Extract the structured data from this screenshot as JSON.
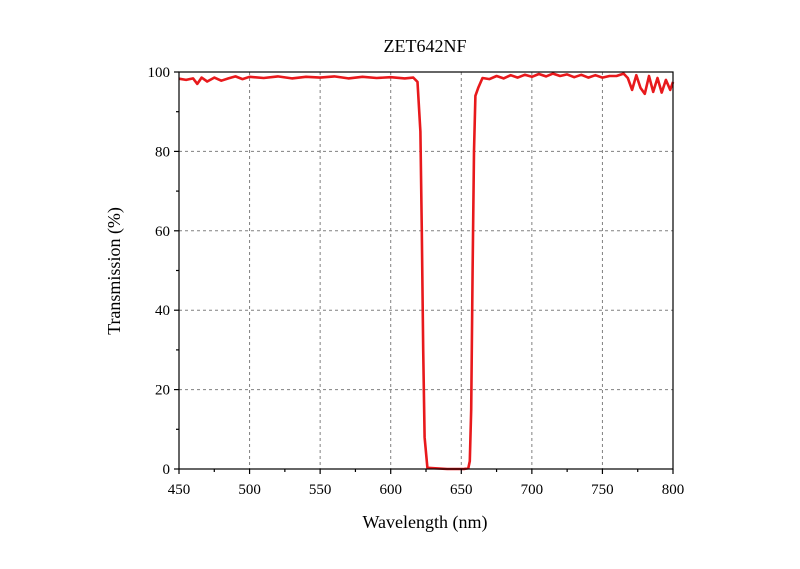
{
  "chart_data": {
    "type": "line",
    "title": "ZET642NF",
    "xlabel": "Wavelength (nm)",
    "ylabel": "Transmission (%)",
    "xlim": [
      450,
      800
    ],
    "ylim": [
      0,
      100
    ],
    "xticks": [
      450,
      500,
      550,
      600,
      650,
      700,
      750,
      800
    ],
    "yticks": [
      0,
      20,
      40,
      60,
      80,
      100
    ],
    "grid": true,
    "series": [
      {
        "color": "#e8191c",
        "points": [
          [
            450,
            98.3
          ],
          [
            455,
            98.0
          ],
          [
            460,
            98.4
          ],
          [
            463,
            97.0
          ],
          [
            466,
            98.6
          ],
          [
            470,
            97.6
          ],
          [
            475,
            98.6
          ],
          [
            480,
            97.8
          ],
          [
            485,
            98.4
          ],
          [
            490,
            98.9
          ],
          [
            495,
            98.2
          ],
          [
            500,
            98.8
          ],
          [
            510,
            98.5
          ],
          [
            520,
            98.9
          ],
          [
            530,
            98.4
          ],
          [
            540,
            98.8
          ],
          [
            550,
            98.6
          ],
          [
            560,
            98.9
          ],
          [
            570,
            98.4
          ],
          [
            580,
            98.8
          ],
          [
            590,
            98.5
          ],
          [
            600,
            98.7
          ],
          [
            610,
            98.4
          ],
          [
            616,
            98.6
          ],
          [
            619,
            97.5
          ],
          [
            621,
            85.0
          ],
          [
            622,
            60.0
          ],
          [
            623,
            30.0
          ],
          [
            624,
            8.0
          ],
          [
            626,
            0.3
          ],
          [
            640,
            0.0
          ],
          [
            652,
            0.0
          ],
          [
            655,
            0.2
          ],
          [
            656,
            2.0
          ],
          [
            657,
            15.0
          ],
          [
            658,
            50.0
          ],
          [
            659,
            80.0
          ],
          [
            660,
            94.0
          ],
          [
            662,
            96.0
          ],
          [
            665,
            98.5
          ],
          [
            670,
            98.2
          ],
          [
            675,
            99.0
          ],
          [
            680,
            98.4
          ],
          [
            685,
            99.2
          ],
          [
            690,
            98.6
          ],
          [
            695,
            99.3
          ],
          [
            700,
            98.8
          ],
          [
            705,
            99.5
          ],
          [
            710,
            98.9
          ],
          [
            715,
            99.6
          ],
          [
            720,
            99.0
          ],
          [
            725,
            99.4
          ],
          [
            730,
            98.7
          ],
          [
            735,
            99.3
          ],
          [
            740,
            98.6
          ],
          [
            745,
            99.2
          ],
          [
            750,
            98.6
          ],
          [
            755,
            99.0
          ],
          [
            760,
            99.0
          ],
          [
            765,
            99.6
          ],
          [
            768,
            98.5
          ],
          [
            771,
            95.5
          ],
          [
            774,
            99.2
          ],
          [
            777,
            96.0
          ],
          [
            780,
            94.5
          ],
          [
            783,
            99.0
          ],
          [
            786,
            95.0
          ],
          [
            789,
            98.5
          ],
          [
            792,
            94.8
          ],
          [
            795,
            98.0
          ],
          [
            798,
            95.5
          ],
          [
            800,
            97.5
          ]
        ]
      }
    ]
  }
}
